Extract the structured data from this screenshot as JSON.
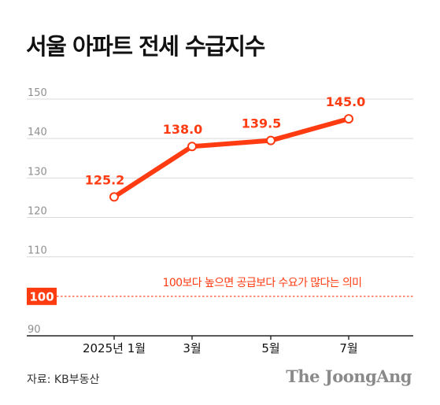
{
  "title": "서울 아파트 전세 수급지수",
  "source": "자료: KB부동산",
  "logo": "The JoongAng",
  "colors": {
    "accent": "#ff3b12",
    "grid": "#d9d9d9",
    "axis": "#222222",
    "tick": "#8f8f8f"
  },
  "chart_data": {
    "type": "line",
    "title": "서울 아파트 전세 수급지수",
    "categories": [
      "2025년 1월",
      "3월",
      "5월",
      "7월"
    ],
    "series": [
      {
        "values": [
          125.2,
          138.0,
          139.5,
          145.0
        ]
      }
    ],
    "data_labels": [
      "125.2",
      "138.0",
      "139.5",
      "145.0"
    ],
    "yticks": [
      "90",
      "110",
      "120",
      "130",
      "140",
      "150"
    ],
    "ytick_values": [
      90,
      110,
      120,
      130,
      140,
      150
    ],
    "ylim": [
      90,
      150
    ],
    "grid": true,
    "reference_line": {
      "value": 100,
      "label": "100",
      "annotation": "100보다 높으면 공급보다 수요가 많다는 의미"
    }
  }
}
